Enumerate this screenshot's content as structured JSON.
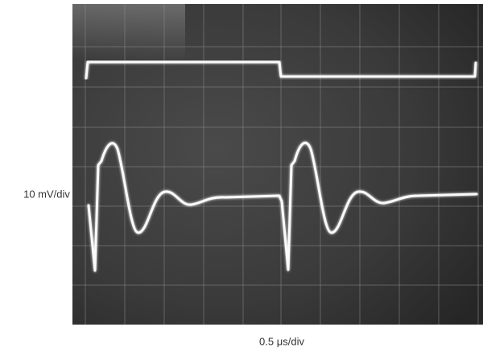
{
  "axis_labels": {
    "y": "10 mV/div",
    "x": "0.5 μs/div"
  }
}
